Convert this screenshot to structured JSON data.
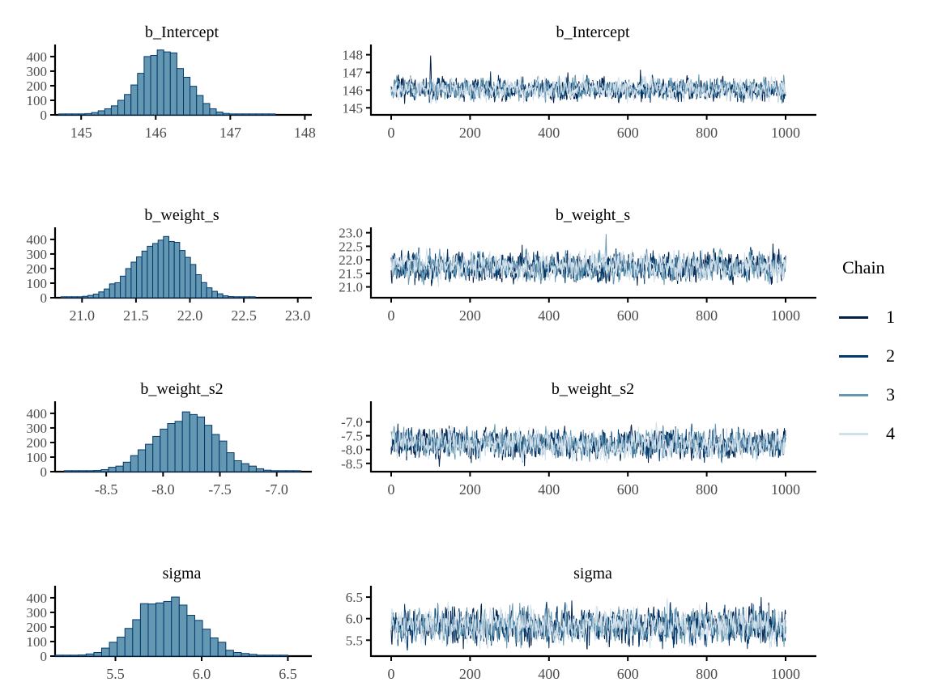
{
  "figure": {
    "background": "#ffffff"
  },
  "style": {
    "histogram_fill": "#6497b1",
    "histogram_stroke": "#03396c",
    "axis_color": "#000000",
    "tick_label_color": "#4d4d4d",
    "title_color": "#000000"
  },
  "legend": {
    "title": "Chain",
    "items": [
      {
        "label": "1",
        "color": "#011f4b"
      },
      {
        "label": "2",
        "color": "#03396c"
      },
      {
        "label": "3",
        "color": "#6497b1"
      },
      {
        "label": "4",
        "color": "#d1e1ec"
      }
    ]
  },
  "chart_data": [
    {
      "type": "bar",
      "panel": "histogram",
      "title": "b_Intercept",
      "xtick_labels": [
        "145",
        "146",
        "147",
        "148"
      ],
      "xticks": [
        145,
        146,
        147,
        148
      ],
      "xlim": [
        144.65,
        148.05
      ],
      "ytick_labels": [
        "0",
        "100",
        "200",
        "300",
        "400"
      ],
      "yticks": [
        0,
        100,
        200,
        300,
        400
      ],
      "ylim": [
        0,
        455
      ],
      "bin_start": 144.7,
      "bin_width": 0.088,
      "counts": [
        1,
        2,
        3,
        5,
        9,
        16,
        28,
        42,
        62,
        100,
        140,
        205,
        285,
        400,
        408,
        445,
        432,
        425,
        318,
        258,
        196,
        133,
        78,
        42,
        20,
        10,
        5,
        3,
        2,
        1,
        1,
        1,
        1
      ]
    },
    {
      "type": "line",
      "panel": "trace",
      "title": "b_Intercept",
      "xtick_labels": [
        "0",
        "200",
        "400",
        "600",
        "800",
        "1000"
      ],
      "xticks": [
        0,
        200,
        400,
        600,
        800,
        1000
      ],
      "xlim": [
        -52,
        1052
      ],
      "n_iterations": 1000,
      "chains": 4,
      "ytick_labels": [
        "145",
        "146",
        "147",
        "148"
      ],
      "yticks": [
        145,
        146,
        147,
        148
      ],
      "ylim": [
        144.6,
        148.35
      ],
      "center": 146.05,
      "sd": 0.3,
      "spikes": [
        {
          "iter": 100,
          "value": 147.95,
          "chain": 1
        },
        {
          "iter": 252,
          "value": 147.05,
          "chain": 2
        },
        {
          "iter": 448,
          "value": 147.0,
          "chain": 1
        },
        {
          "iter": 632,
          "value": 147.15,
          "chain": 1
        }
      ]
    },
    {
      "type": "bar",
      "panel": "histogram",
      "title": "b_weight_s",
      "xtick_labels": [
        "21.0",
        "21.5",
        "22.0",
        "22.5",
        "23.0"
      ],
      "xticks": [
        21.0,
        21.5,
        22.0,
        22.5,
        23.0
      ],
      "xlim": [
        20.75,
        23.1
      ],
      "ytick_labels": [
        "0",
        "100",
        "200",
        "300",
        "400"
      ],
      "yticks": [
        0,
        100,
        200,
        300,
        400
      ],
      "ylim": [
        0,
        455
      ],
      "bin_start": 20.805,
      "bin_width": 0.05,
      "counts": [
        1,
        2,
        4,
        6,
        10,
        16,
        25,
        40,
        60,
        95,
        103,
        148,
        200,
        244,
        280,
        320,
        353,
        372,
        395,
        420,
        386,
        380,
        324,
        277,
        228,
        158,
        104,
        68,
        44,
        27,
        13,
        8,
        4,
        2,
        1,
        1
      ]
    },
    {
      "type": "line",
      "panel": "trace",
      "title": "b_weight_s",
      "xtick_labels": [
        "0",
        "200",
        "400",
        "600",
        "800",
        "1000"
      ],
      "xticks": [
        0,
        200,
        400,
        600,
        800,
        1000
      ],
      "xlim": [
        -52,
        1052
      ],
      "n_iterations": 1000,
      "chains": 4,
      "ytick_labels": [
        "21.0",
        "21.5",
        "22.0",
        "22.5",
        "23.0"
      ],
      "yticks": [
        21.0,
        21.5,
        22.0,
        22.5,
        23.0
      ],
      "ylim": [
        20.6,
        23.05
      ],
      "center": 21.75,
      "sd": 0.26,
      "spikes": [
        {
          "iter": 332,
          "value": 22.55,
          "chain": 1
        },
        {
          "iter": 545,
          "value": 22.95,
          "chain": 3
        },
        {
          "iter": 968,
          "value": 22.6,
          "chain": 1
        }
      ]
    },
    {
      "type": "bar",
      "panel": "histogram",
      "title": "b_weight_s2",
      "xtick_labels": [
        "-8.5",
        "-8.0",
        "-7.5",
        "-7.0"
      ],
      "xticks": [
        -8.5,
        -8.0,
        -7.5,
        -7.0
      ],
      "xlim": [
        -8.95,
        -6.72
      ],
      "ytick_labels": [
        "0",
        "100",
        "200",
        "300",
        "400"
      ],
      "yticks": [
        0,
        100,
        200,
        300,
        400
      ],
      "ylim": [
        0,
        455
      ],
      "bin_start": -8.87,
      "bin_width": 0.065,
      "counts": [
        1,
        2,
        3,
        5,
        8,
        14,
        30,
        38,
        65,
        110,
        150,
        188,
        242,
        292,
        330,
        345,
        410,
        392,
        375,
        318,
        255,
        210,
        130,
        75,
        55,
        38,
        20,
        10,
        5,
        3,
        2,
        1
      ]
    },
    {
      "type": "line",
      "panel": "trace",
      "title": "b_weight_s2",
      "xtick_labels": [
        "0",
        "200",
        "400",
        "600",
        "800",
        "1000"
      ],
      "xticks": [
        0,
        200,
        400,
        600,
        800,
        1000
      ],
      "xlim": [
        -52,
        1052
      ],
      "n_iterations": 1000,
      "chains": 4,
      "ytick_labels": [
        "-8.5",
        "-8.0",
        "-7.5",
        "-7.0"
      ],
      "yticks": [
        -8.5,
        -8.0,
        -7.5,
        -7.0
      ],
      "ylim": [
        -8.8,
        -6.4
      ],
      "center": -7.8,
      "sd": 0.26,
      "spikes": [
        {
          "iter": 122,
          "value": -8.62,
          "chain": 1
        },
        {
          "iter": 338,
          "value": -8.6,
          "chain": 1
        },
        {
          "iter": 672,
          "value": -7.0,
          "chain": 4
        }
      ]
    },
    {
      "type": "bar",
      "panel": "histogram",
      "title": "sigma",
      "xtick_labels": [
        "5.5",
        "6.0",
        "6.5"
      ],
      "xticks": [
        5.5,
        6.0,
        6.5
      ],
      "xlim": [
        5.15,
        6.62
      ],
      "ytick_labels": [
        "0",
        "100",
        "200",
        "300",
        "400"
      ],
      "yticks": [
        0,
        100,
        200,
        300,
        400
      ],
      "ylim": [
        0,
        455
      ],
      "bin_start": 5.15,
      "bin_width": 0.045,
      "counts": [
        1,
        2,
        4,
        8,
        15,
        25,
        55,
        95,
        130,
        190,
        250,
        360,
        358,
        365,
        375,
        405,
        350,
        280,
        245,
        185,
        125,
        95,
        40,
        25,
        18,
        12,
        6,
        3,
        2,
        1
      ]
    },
    {
      "type": "line",
      "panel": "trace",
      "title": "sigma",
      "xtick_labels": [
        "0",
        "200",
        "400",
        "600",
        "800",
        "1000"
      ],
      "xticks": [
        0,
        200,
        400,
        600,
        800,
        1000
      ],
      "xlim": [
        -52,
        1052
      ],
      "n_iterations": 1000,
      "chains": 4,
      "ytick_labels": [
        "5.5",
        "6.0",
        "6.5"
      ],
      "yticks": [
        5.5,
        6.0,
        6.5
      ],
      "ylim": [
        5.13,
        6.67
      ],
      "center": 5.82,
      "sd": 0.2,
      "spikes": [
        {
          "iter": 458,
          "value": 6.42,
          "chain": 1
        },
        {
          "iter": 700,
          "value": 6.48,
          "chain": 4
        },
        {
          "iter": 938,
          "value": 6.5,
          "chain": 1
        }
      ]
    }
  ]
}
